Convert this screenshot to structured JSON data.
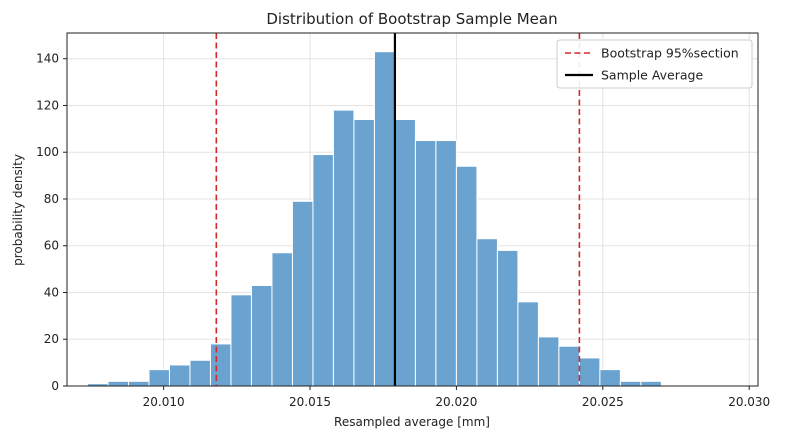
{
  "chart_data": {
    "type": "bar",
    "title": "Distribution of Bootstrap Sample Mean",
    "xlabel": "Resampled average [mm]",
    "ylabel": "probability density",
    "xlim": [
      20.0067,
      20.0303
    ],
    "ylim": [
      0,
      151
    ],
    "grid": true,
    "legend_position": "top-right",
    "bar_color": "#6aa3cf",
    "bar_edge_color": "#ffffff",
    "x_ticks": [
      {
        "value": 20.01,
        "label": "20.010"
      },
      {
        "value": 20.015,
        "label": "20.015"
      },
      {
        "value": 20.02,
        "label": "20.020"
      },
      {
        "value": 20.025,
        "label": "20.025"
      },
      {
        "value": 20.03,
        "label": "20.030"
      }
    ],
    "y_ticks": [
      {
        "value": 0,
        "label": "0"
      },
      {
        "value": 20,
        "label": "20"
      },
      {
        "value": 40,
        "label": "40"
      },
      {
        "value": 60,
        "label": "60"
      },
      {
        "value": 80,
        "label": "80"
      },
      {
        "value": 100,
        "label": "100"
      },
      {
        "value": 120,
        "label": "120"
      },
      {
        "value": 140,
        "label": "140"
      }
    ],
    "bin_edges": [
      20.0074,
      20.0081,
      20.0088,
      20.0095,
      20.0102,
      20.0109,
      20.0116,
      20.0123,
      20.013,
      20.0137,
      20.0144,
      20.0151,
      20.0158,
      20.0165,
      20.0172,
      20.0179,
      20.0186,
      20.0193,
      20.02,
      20.0207,
      20.0214,
      20.0221,
      20.0228,
      20.0235,
      20.0242,
      20.0249,
      20.0256,
      20.0263,
      20.027,
      20.0277
    ],
    "counts": [
      1,
      2,
      2,
      7,
      9,
      11,
      18,
      39,
      43,
      57,
      79,
      99,
      118,
      114,
      143,
      114,
      105,
      105,
      94,
      63,
      58,
      36,
      21,
      17,
      12,
      7,
      2,
      2,
      0
    ],
    "series": [
      {
        "name": "Bootstrap 95%section",
        "kind": "vline",
        "x": [
          20.0118,
          20.0242
        ],
        "color": "#d62728",
        "style": "dashed"
      },
      {
        "name": "Sample Average",
        "kind": "vline",
        "x": [
          20.0179
        ],
        "color": "#000000",
        "style": "solid"
      }
    ]
  }
}
